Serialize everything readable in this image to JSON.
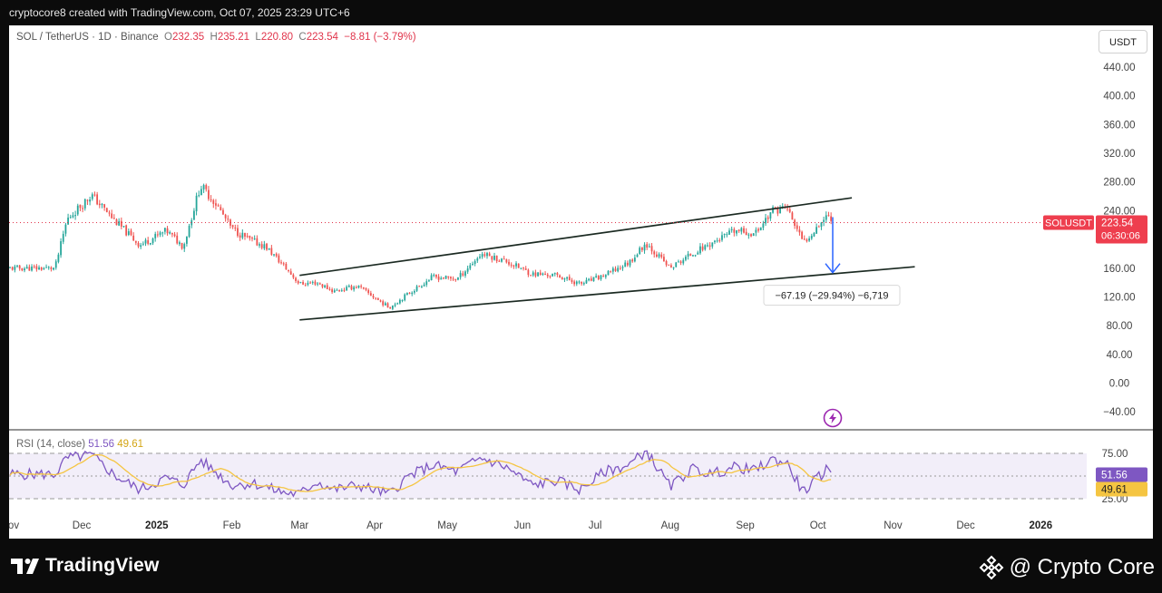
{
  "header": {
    "attribution": "cryptocore8 created with TradingView.com, Oct 07, 2025 23:29 UTC+6"
  },
  "legend": {
    "symbol": "SOL / TetherUS · 1D · Binance",
    "o_label": "O",
    "o_value": "232.35",
    "h_label": "H",
    "h_value": "235.21",
    "l_label": "L",
    "l_value": "220.80",
    "c_label": "C",
    "c_value": "223.54",
    "change": "−8.81 (−3.79%)"
  },
  "currency_button": "USDT",
  "price_badge": {
    "ticker": "SOLUSDT",
    "price": "223.54",
    "countdown": "06:30:06"
  },
  "measure_label": "−67.19 (−29.94%) −6,719",
  "rsi_legend": {
    "name": "RSI (14, close)",
    "rsi_value": "51.56",
    "ma_value": "49.61"
  },
  "rsi_axis_ticks": [
    "75.00",
    "25.00"
  ],
  "footer": {
    "brand": "TradingView",
    "credit": "@ Crypto Core"
  },
  "colors": {
    "up": "#26a69a",
    "down": "#ef5350",
    "rsi_line": "#7e57c2",
    "rsi_ma": "#f5c542",
    "channel": "#1b2a22",
    "arrow": "#2962ff",
    "badge": "#ee3e4e"
  },
  "chart_data": {
    "type": "candlestick",
    "symbol": "SOL/USDT",
    "timeframe": "1D",
    "y_ticks": [
      "440.00",
      "400.00",
      "360.00",
      "320.00",
      "280.00",
      "240.00",
      "160.00",
      "120.00",
      "80.00",
      "40.00",
      "0.00",
      "−40.00"
    ],
    "ylim": [
      -50,
      470
    ],
    "x_ticks": [
      "ov",
      "Dec",
      "2025",
      "Feb",
      "Mar",
      "Apr",
      "May",
      "Jun",
      "Jul",
      "Aug",
      "Sep",
      "Oct",
      "Nov",
      "Dec",
      "2026"
    ],
    "price_path": [
      [
        "2024-11-20",
        160
      ],
      [
        "2024-11-25",
        228
      ],
      [
        "2024-12-05",
        262
      ],
      [
        "2024-12-15",
        225
      ],
      [
        "2024-12-25",
        192
      ],
      [
        "2025-01-05",
        212
      ],
      [
        "2025-01-12",
        190
      ],
      [
        "2025-01-19",
        275
      ],
      [
        "2025-01-25",
        252
      ],
      [
        "2025-02-01",
        215
      ],
      [
        "2025-02-08",
        200
      ],
      [
        "2025-02-15",
        190
      ],
      [
        "2025-02-22",
        165
      ],
      [
        "2025-03-01",
        138
      ],
      [
        "2025-03-08",
        140
      ],
      [
        "2025-03-15",
        128
      ],
      [
        "2025-03-25",
        135
      ],
      [
        "2025-04-07",
        105
      ],
      [
        "2025-04-15",
        125
      ],
      [
        "2025-04-25",
        148
      ],
      [
        "2025-05-05",
        145
      ],
      [
        "2025-05-15",
        180
      ],
      [
        "2025-05-25",
        170
      ],
      [
        "2025-06-05",
        152
      ],
      [
        "2025-06-15",
        150
      ],
      [
        "2025-06-25",
        138
      ],
      [
        "2025-07-05",
        150
      ],
      [
        "2025-07-15",
        168
      ],
      [
        "2025-07-22",
        195
      ],
      [
        "2025-08-01",
        160
      ],
      [
        "2025-08-10",
        180
      ],
      [
        "2025-08-18",
        195
      ],
      [
        "2025-08-28",
        212
      ],
      [
        "2025-09-05",
        208
      ],
      [
        "2025-09-12",
        240
      ],
      [
        "2025-09-18",
        245
      ],
      [
        "2025-09-25",
        195
      ],
      [
        "2025-10-01",
        220
      ],
      [
        "2025-10-05",
        235
      ],
      [
        "2025-10-07",
        223.54
      ]
    ],
    "channel_upper": [
      [
        "2025-03-01",
        150
      ],
      [
        "2025-10-15",
        258
      ]
    ],
    "channel_lower": [
      [
        "2025-03-01",
        88
      ],
      [
        "2025-11-10",
        162
      ]
    ],
    "measure": {
      "from": 223.54,
      "to": 156.35,
      "change": -67.19,
      "percent": -29.94
    },
    "rsi": {
      "overbought": 75,
      "oversold": 25,
      "path": [
        [
          "2024-11-20",
          52
        ],
        [
          "2024-11-25",
          70
        ],
        [
          "2024-12-05",
          73
        ],
        [
          "2024-12-15",
          50
        ],
        [
          "2024-12-25",
          35
        ],
        [
          "2025-01-05",
          48
        ],
        [
          "2025-01-12",
          40
        ],
        [
          "2025-01-19",
          68
        ],
        [
          "2025-01-25",
          55
        ],
        [
          "2025-02-01",
          40
        ],
        [
          "2025-02-10",
          42
        ],
        [
          "2025-02-22",
          32
        ],
        [
          "2025-03-01",
          30
        ],
        [
          "2025-03-08",
          44
        ],
        [
          "2025-03-15",
          35
        ],
        [
          "2025-03-25",
          40
        ],
        [
          "2025-04-07",
          30
        ],
        [
          "2025-04-15",
          50
        ],
        [
          "2025-04-25",
          62
        ],
        [
          "2025-05-05",
          55
        ],
        [
          "2025-05-15",
          70
        ],
        [
          "2025-05-25",
          60
        ],
        [
          "2025-06-05",
          40
        ],
        [
          "2025-06-15",
          45
        ],
        [
          "2025-06-25",
          35
        ],
        [
          "2025-07-05",
          55
        ],
        [
          "2025-07-15",
          62
        ],
        [
          "2025-07-22",
          78
        ],
        [
          "2025-08-01",
          38
        ],
        [
          "2025-08-10",
          58
        ],
        [
          "2025-08-18",
          52
        ],
        [
          "2025-08-28",
          60
        ],
        [
          "2025-09-05",
          56
        ],
        [
          "2025-09-12",
          68
        ],
        [
          "2025-09-18",
          65
        ],
        [
          "2025-09-25",
          32
        ],
        [
          "2025-10-01",
          48
        ],
        [
          "2025-10-05",
          58
        ],
        [
          "2025-10-07",
          51.56
        ]
      ]
    }
  }
}
